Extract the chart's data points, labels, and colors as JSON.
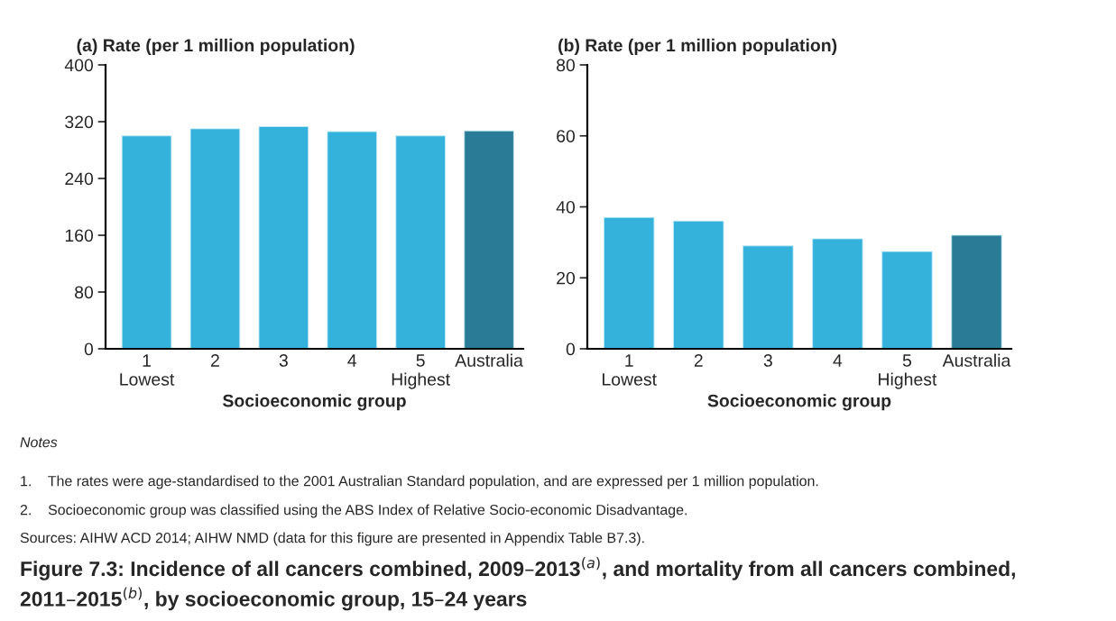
{
  "chart_data": [
    {
      "type": "bar",
      "ylabel": "(a) Rate (per 1 million population)",
      "xlabel": "Socioeconomic group",
      "categories": [
        "1\nLowest",
        "2",
        "3",
        "4",
        "5\nHighest",
        "Australia"
      ],
      "values": [
        300,
        310,
        313,
        306,
        300,
        307
      ],
      "colors": [
        "#35b2dc",
        "#35b2dc",
        "#35b2dc",
        "#35b2dc",
        "#35b2dc",
        "#2a7c96"
      ],
      "ylim": [
        0,
        400
      ],
      "yticks": [
        0,
        80,
        160,
        240,
        320,
        400
      ],
      "grid": false,
      "annotations": [
        "Notes",
        "1.    The rates were age-standardised to the 2001 Australian Standard population, and are expressed per 1 million population.",
        "2.    Socioeconomic group was classified using the ABS Index of Relative Socio-economic Disadvantage.",
        "Sources: AIHW ACD 2014; AIHW NMD (data for this figure are presented in Appendix Table B7.3).",
        "Figure 7.3: Incidence of all cancers combined, 2009–2013$^{(a)}$, and mortality from all cancers combined, 2011–2015$^{(b)}$, by socioeconomic group, 15–24 years"
      ]
    },
    {
      "type": "bar",
      "ylabel": "(b) Rate (per 1 million population)",
      "xlabel": "Socioeconomic group",
      "categories": [
        "1\nLowest",
        "2",
        "3",
        "4",
        "5\nHighest",
        "Australia"
      ],
      "values": [
        37,
        36,
        29,
        31,
        27.4,
        32
      ],
      "colors": [
        "#35b2dc",
        "#35b2dc",
        "#35b2dc",
        "#35b2dc",
        "#35b2dc",
        "#2a7c96"
      ],
      "ylim": [
        0,
        80
      ],
      "yticks": [
        0,
        20,
        40,
        60,
        80
      ],
      "grid": false
    }
  ]
}
